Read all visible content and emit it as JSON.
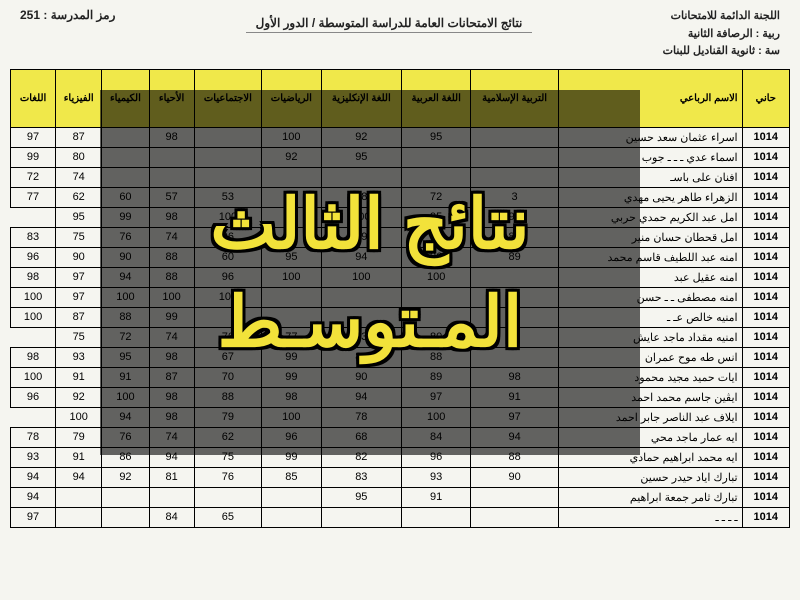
{
  "header": {
    "committee": "اللجنة الدائمة للامتحانات",
    "directorate": "ربية : الرصافة الثانية",
    "school": "سة : ثانوية القناديل للبنات",
    "title": "نتائج الامتحانات العامة للدراسة المتوسطة / الدور الأول",
    "school_code_label": "رمز المدرسة :",
    "school_code": "251"
  },
  "table": {
    "columns": [
      "حاني",
      "الاسم الرباعي",
      "التربية الإسلامية",
      "اللغة العربية",
      "اللغة الإنكليزية",
      "الرياضيات",
      "الاجتماعيات",
      "الأحياء",
      "الكيمياء",
      "الفيزياء",
      "اللغات"
    ],
    "rows": [
      {
        "code": "1014",
        "name": "اسراء عثمان سعد حسين",
        "s": [
          "",
          "95",
          "92",
          "100",
          "",
          "98",
          "",
          "87",
          "97"
        ]
      },
      {
        "code": "1014",
        "name": "اسماء عدي ـ ـ ـ جوب",
        "s": [
          "",
          "",
          "95",
          "92",
          "",
          "",
          "",
          "80",
          "99"
        ]
      },
      {
        "code": "1014",
        "name": "افنان على باسـ",
        "s": [
          "",
          "",
          "",
          "",
          "",
          "",
          "",
          "74",
          "72"
        ]
      },
      {
        "code": "1014",
        "name": "الزهراء طاهر يحيى مهدي",
        "s": [
          "3",
          "72",
          "78",
          "85",
          "53",
          "57",
          "60",
          "62",
          "77"
        ]
      },
      {
        "code": "1014",
        "name": "امل عبد الكريم حمدي حربي",
        "s": [
          "98",
          "95",
          "100",
          "96",
          "100",
          "98",
          "99",
          "95"
        ]
      },
      {
        "code": "1014",
        "name": "امل قحطان حسان منير",
        "s": [
          "82",
          "",
          "89",
          "78",
          "96",
          "74",
          "76",
          "75",
          "83"
        ]
      },
      {
        "code": "1014",
        "name": "امنه عبد اللطيف قاسم محمد",
        "s": [
          "89",
          "96",
          "94",
          "95",
          "60",
          "88",
          "90",
          "90",
          "96"
        ]
      },
      {
        "code": "1014",
        "name": "امنه عقيل عبد",
        "s": [
          "",
          "100",
          "100",
          "100",
          "96",
          "88",
          "94",
          "97",
          "98"
        ]
      },
      {
        "code": "1014",
        "name": "امنه مصطفى ـ ـ حسن",
        "s": [
          "",
          "",
          "",
          "",
          "100",
          "100",
          "100",
          "97",
          "100"
        ]
      },
      {
        "code": "1014",
        "name": "امنيه خالص عـ ـ",
        "s": [
          "",
          "",
          "",
          "",
          "",
          "99",
          "88",
          "87",
          "100"
        ]
      },
      {
        "code": "1014",
        "name": "امنيه مقداد ماجد عايش",
        "s": [
          "",
          "80",
          "83",
          "77",
          "76",
          "74",
          "72",
          "75"
        ]
      },
      {
        "code": "1014",
        "name": "انس طه موح عمران",
        "s": [
          "",
          "88",
          "89",
          "99",
          "67",
          "98",
          "95",
          "93",
          "98"
        ]
      },
      {
        "code": "1014",
        "name": "ايات حميد مجيد محمود",
        "s": [
          "98",
          "89",
          "90",
          "99",
          "70",
          "87",
          "91",
          "91",
          "100"
        ]
      },
      {
        "code": "1014",
        "name": "ايڤين جاسم محمد احمد",
        "s": [
          "91",
          "97",
          "94",
          "98",
          "88",
          "98",
          "100",
          "92",
          "96"
        ]
      },
      {
        "code": "1014",
        "name": "ايلاف عبد الناصر جابر احمد",
        "s": [
          "97",
          "100",
          "78",
          "100",
          "79",
          "98",
          "94",
          "100"
        ]
      },
      {
        "code": "1014",
        "name": "ايه عمار ماجد محي",
        "s": [
          "94",
          "84",
          "68",
          "96",
          "62",
          "74",
          "76",
          "79",
          "78"
        ]
      },
      {
        "code": "1014",
        "name": "ايه محمد ابراهيم حمادي",
        "s": [
          "88",
          "96",
          "82",
          "99",
          "75",
          "94",
          "86",
          "91",
          "93"
        ]
      },
      {
        "code": "1014",
        "name": "تبارك اياد حيدر حسين",
        "s": [
          "90",
          "93",
          "83",
          "85",
          "76",
          "81",
          "92",
          "94",
          "94"
        ]
      },
      {
        "code": "1014",
        "name": "تبارك ثامر جمعة ابراهيم",
        "s": [
          "",
          "91",
          "95",
          "",
          "",
          "",
          "",
          "",
          "94"
        ]
      },
      {
        "code": "1014",
        "name": "ـ ـ ـ ـ",
        "s": [
          "",
          "",
          "",
          "",
          "65",
          "84",
          "",
          "",
          "97"
        ]
      }
    ],
    "header_bg": "#f0e84a",
    "border_color": "#000000",
    "font_size_body": 11,
    "font_size_header": 10
  },
  "overlay": {
    "line1": "نتائج الثالث",
    "line2": "المـتوسـط",
    "text_color": "#f2e23a",
    "outline_color": "#000000",
    "bg_overlay": "rgba(0,0,0,0.60)",
    "font_size": 70
  }
}
